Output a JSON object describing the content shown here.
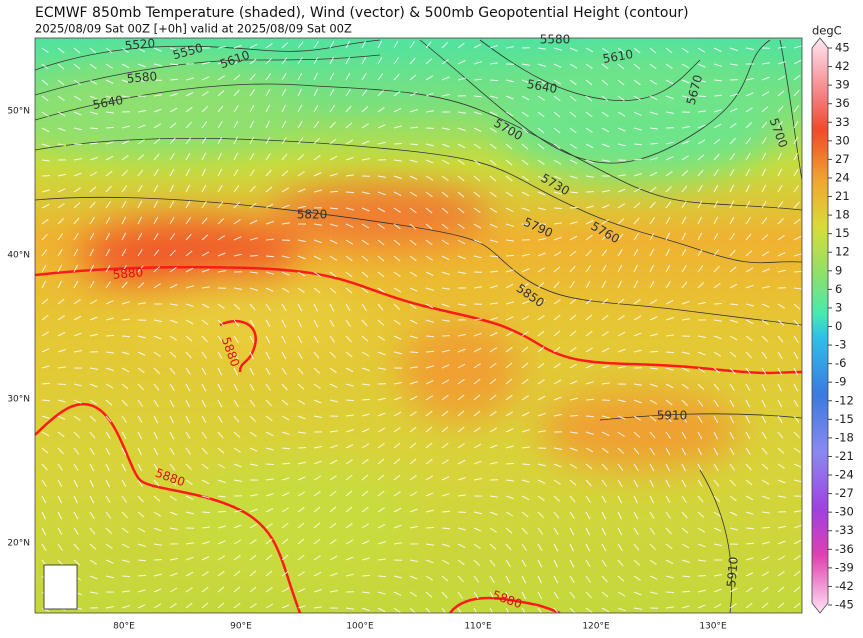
{
  "header": {
    "title": "ECMWF 850mb Temperature (shaded), Wind (vector) & 500mb Geopotential Height (contour)",
    "subtitle": "2025/08/09 Sat 00Z [+0h] valid at 2025/08/09 Sat 00Z"
  },
  "colorbar": {
    "unit": "degC",
    "ticks": [
      45,
      42,
      39,
      36,
      33,
      30,
      27,
      24,
      21,
      18,
      15,
      12,
      9,
      6,
      3,
      0,
      -3,
      -6,
      -9,
      -12,
      -15,
      -18,
      -21,
      -24,
      -27,
      -30,
      -33,
      -36,
      -39,
      -42,
      -45
    ]
  },
  "lat_labels": [
    "50°N",
    "40°N",
    "30°N",
    "20°N"
  ],
  "lon_labels": [
    "80°E",
    "90°E",
    "100°E",
    "110°E",
    "120°E",
    "130°E"
  ],
  "contour_labels": [
    "5520",
    "5550",
    "5610",
    "5580",
    "5640",
    "5580",
    "5610",
    "5640",
    "5670",
    "5700",
    "5700",
    "5730",
    "5820",
    "5790",
    "5760",
    "5850",
    "5910",
    "5910"
  ],
  "ridge_labels": [
    "5880",
    "5880",
    "5880",
    "5880"
  ]
}
